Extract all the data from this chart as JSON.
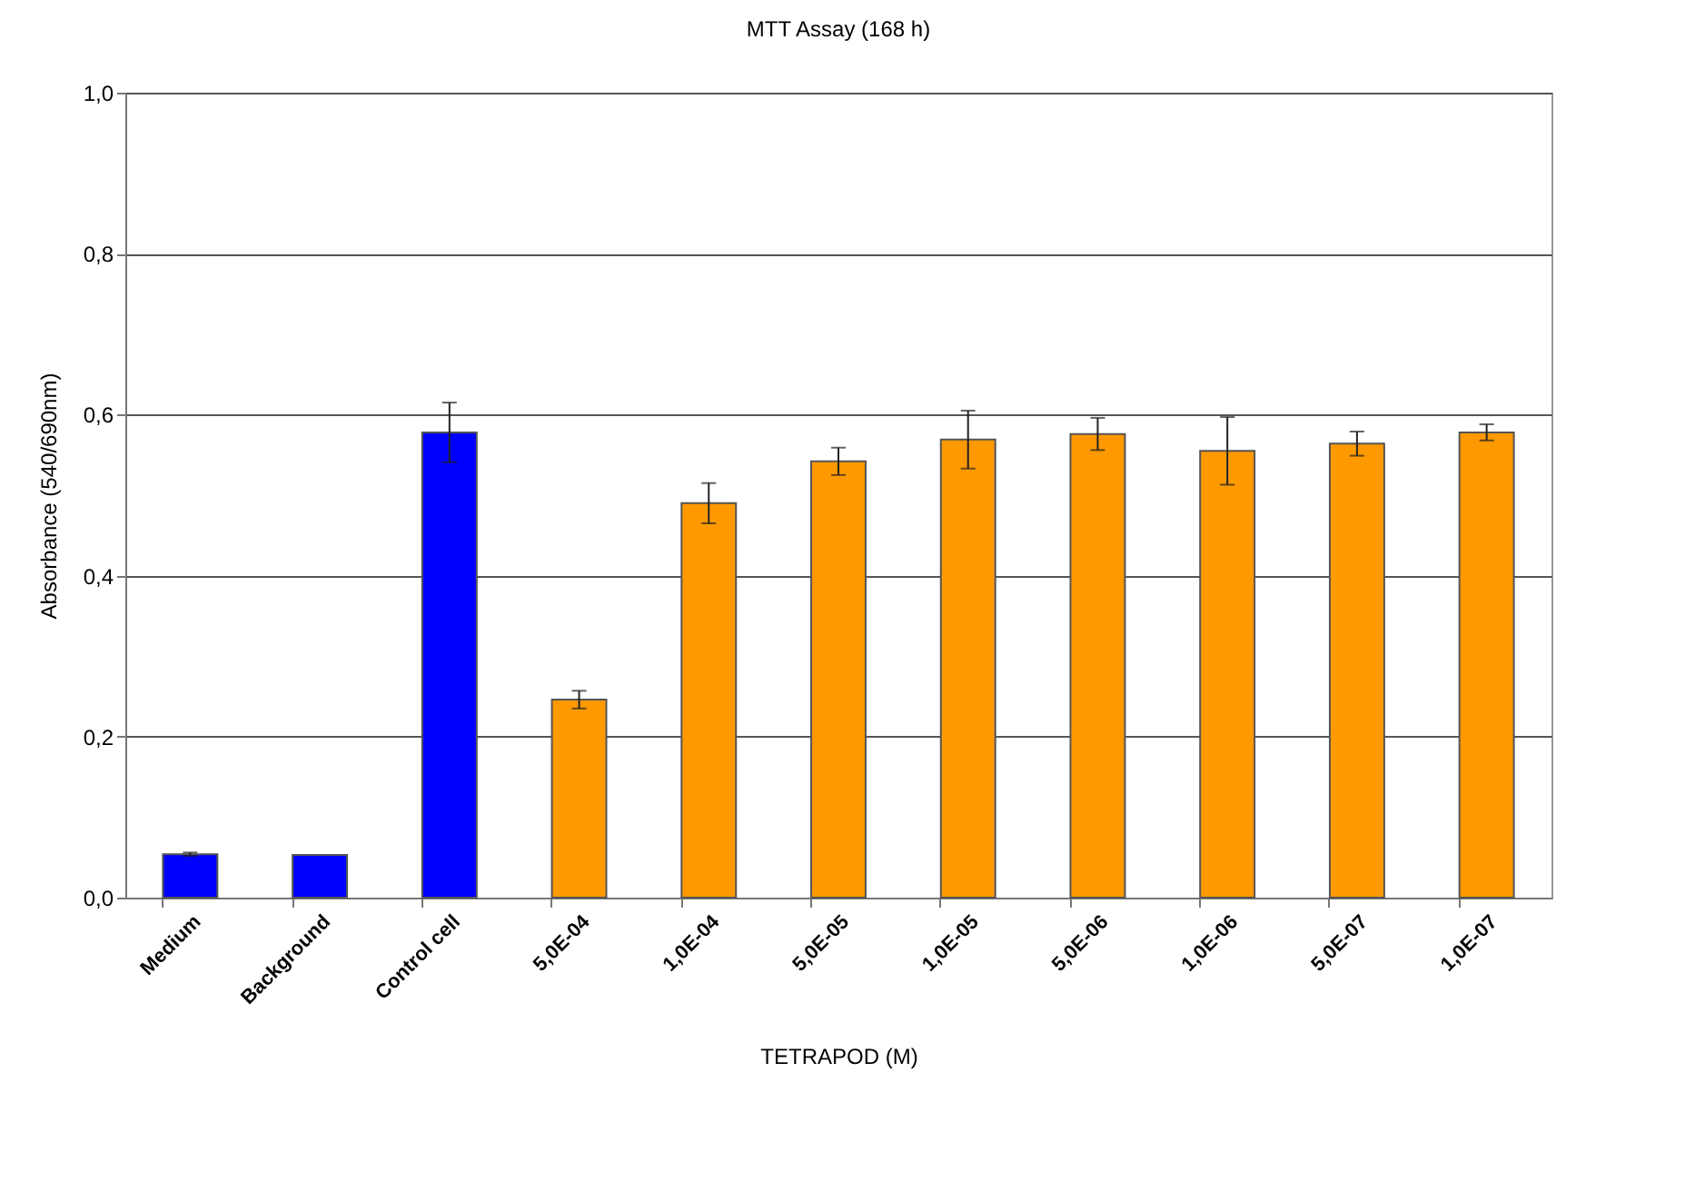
{
  "chart_data": {
    "type": "bar",
    "title": "MTT Assay (168 h)",
    "xlabel": "TETRAPOD (M)",
    "ylabel": "Absorbance (540/690nm)",
    "categories": [
      "Medium",
      "Background",
      "Control cell",
      "5,0E-04",
      "1,0E-04",
      "5,0E-05",
      "1,0E-05",
      "5,0E-06",
      "1,0E-06",
      "5,0E-07",
      "1,0E-07"
    ],
    "values": [
      0.054,
      0.053,
      0.578,
      0.246,
      0.49,
      0.542,
      0.569,
      0.576,
      0.555,
      0.564,
      0.578
    ],
    "errors": [
      0.002,
      null,
      0.037,
      0.011,
      0.025,
      0.017,
      0.036,
      0.02,
      0.042,
      0.015,
      0.01
    ],
    "colors": [
      "#0000ff",
      "#0000ff",
      "#0000ff",
      "#ff9900",
      "#ff9900",
      "#ff9900",
      "#ff9900",
      "#ff9900",
      "#ff9900",
      "#ff9900",
      "#ff9900"
    ],
    "ylim": [
      0,
      1
    ],
    "yticks": [
      {
        "value": 0,
        "label": "0,0"
      },
      {
        "value": 0.2,
        "label": "0,2"
      },
      {
        "value": 0.4,
        "label": "0,4"
      },
      {
        "value": 0.6,
        "label": "0,6"
      },
      {
        "value": 0.8,
        "label": "0,8"
      },
      {
        "value": 1,
        "label": "1,0"
      }
    ],
    "grid": "y"
  }
}
